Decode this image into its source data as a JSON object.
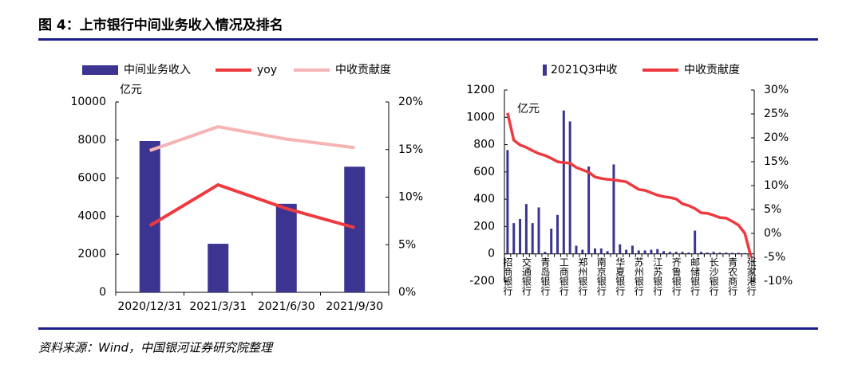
{
  "header": {
    "title": "图 4：上市银行中间业务收入情况及排名"
  },
  "footer": {
    "source": "资料来源：Wind，中国银河证券研究院整理"
  },
  "chart_data": [
    {
      "type": "combo",
      "y_unit": "亿元",
      "categories": [
        "2020/12/31",
        "2021/3/31",
        "2021/6/30",
        "2021/9/30"
      ],
      "series": [
        {
          "name": "中间业务收入",
          "type": "bar",
          "color": "#3b3591",
          "values": [
            7950,
            2550,
            4650,
            6600
          ]
        },
        {
          "name": "yoy",
          "type": "line",
          "axis": "y2",
          "color": "#ee3a3f",
          "values": [
            7.0,
            11.3,
            8.8,
            6.8
          ]
        },
        {
          "name": "中收贡献度",
          "type": "line",
          "axis": "y2",
          "color": "#f6b3b3",
          "values": [
            14.9,
            17.4,
            16.1,
            15.2
          ]
        }
      ],
      "ylim": [
        0,
        10000
      ],
      "yticks": [
        0,
        2000,
        4000,
        6000,
        8000,
        10000
      ],
      "y2lim": [
        0,
        20
      ],
      "y2ticks": [
        {
          "value": 0,
          "label": "0%"
        },
        {
          "value": 5,
          "label": "5%"
        },
        {
          "value": 10,
          "label": "10%"
        },
        {
          "value": 15,
          "label": "15%"
        },
        {
          "value": 20,
          "label": "20%"
        }
      ]
    },
    {
      "type": "combo",
      "y_unit": "亿元",
      "categories": [
        "招商银行",
        null,
        null,
        "交通银行",
        null,
        null,
        "青岛银行",
        null,
        null,
        "工商银行",
        null,
        null,
        "郑州银行",
        null,
        null,
        "南京银行",
        null,
        null,
        "华夏银行",
        null,
        null,
        "苏州银行",
        null,
        null,
        "江苏银行",
        null,
        null,
        "齐鲁银行",
        null,
        null,
        "邮储银行",
        null,
        null,
        "长沙银行",
        null,
        null,
        "青农商行",
        null,
        null,
        "张家港行"
      ],
      "series": [
        {
          "name": "2021Q3中收",
          "type": "bar",
          "color": "#3b3591",
          "values": [
            760,
            225,
            255,
            365,
            225,
            340,
            15,
            185,
            285,
            1050,
            970,
            60,
            30,
            640,
            40,
            40,
            20,
            655,
            70,
            30,
            60,
            25,
            25,
            30,
            35,
            20,
            15,
            15,
            15,
            10,
            170,
            15,
            10,
            15,
            10,
            10,
            8,
            8,
            6,
            5
          ]
        },
        {
          "name": "中收贡献度",
          "type": "line",
          "axis": "y2",
          "color": "#ee3a3f",
          "values": [
            25.2,
            19.5,
            18.5,
            18,
            17.3,
            16.7,
            16.3,
            15.7,
            15,
            14.8,
            14.7,
            13.8,
            13.3,
            12.8,
            11.8,
            11.5,
            11.3,
            11.2,
            11,
            10.8,
            10,
            9.2,
            9,
            8.5,
            8,
            7.7,
            7.5,
            7.2,
            6.2,
            5.8,
            5.2,
            4.3,
            4.2,
            3.8,
            3.3,
            3.2,
            2.5,
            1.7,
            0,
            -5
          ]
        }
      ],
      "ylim": [
        -200,
        1200
      ],
      "yticks": [
        -200,
        0,
        200,
        400,
        600,
        800,
        1000,
        1200
      ],
      "y2lim": [
        -10,
        30
      ],
      "y2ticks": [
        {
          "value": -10,
          "label": "-10%"
        },
        {
          "value": -5,
          "label": "-5%"
        },
        {
          "value": 0,
          "label": "0%"
        },
        {
          "value": 5,
          "label": "5%"
        },
        {
          "value": 10,
          "label": "10%"
        },
        {
          "value": 15,
          "label": "15%"
        },
        {
          "value": 20,
          "label": "20%"
        },
        {
          "value": 25,
          "label": "25%"
        },
        {
          "value": 30,
          "label": "30%"
        }
      ]
    }
  ]
}
